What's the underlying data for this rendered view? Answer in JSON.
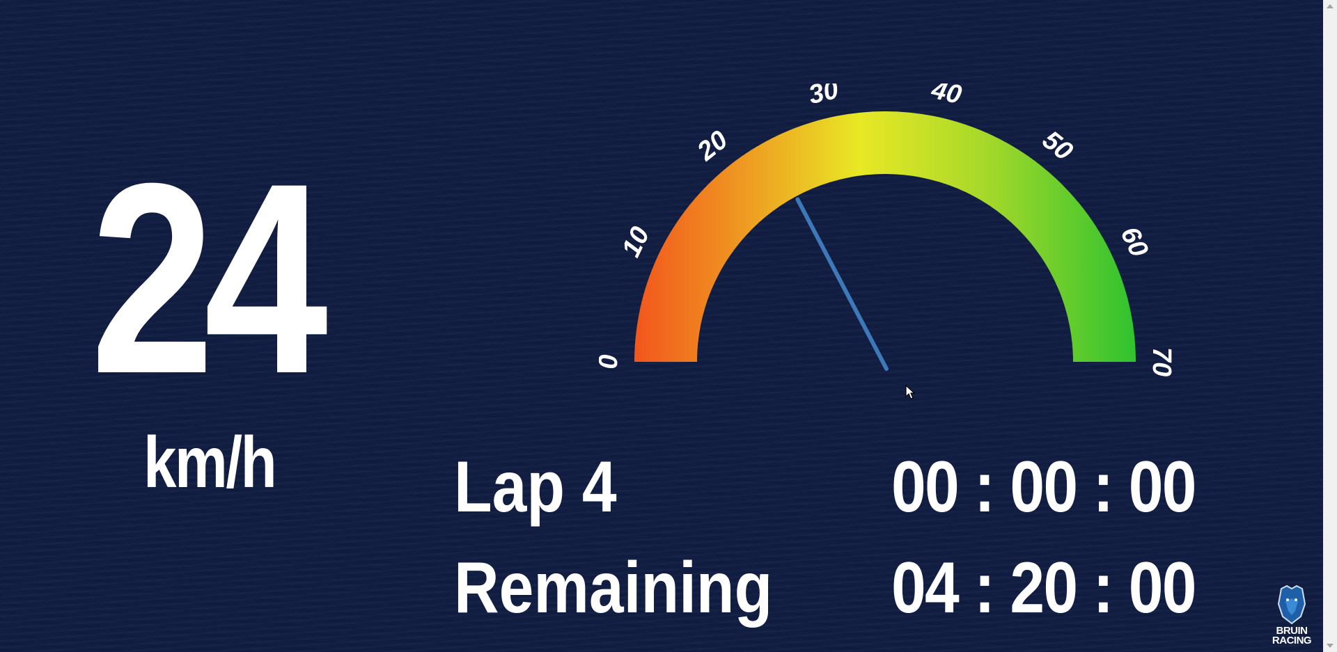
{
  "speed": {
    "value": "24",
    "unit": "km/h"
  },
  "gauge": {
    "min": 0,
    "max": 70,
    "value": 24,
    "tick_labels": [
      "0",
      "10",
      "20",
      "30",
      "40",
      "50",
      "60",
      "70"
    ],
    "colors": {
      "low": "#f2561c",
      "mid": "#e8e825",
      "high": "#2fc22f",
      "needle": "#3d78b8"
    }
  },
  "lap": {
    "label": "Lap 4",
    "time": "00 : 00 : 00"
  },
  "remaining": {
    "label": "Remaining",
    "time": "04 : 20 : 00"
  },
  "brand": {
    "line1": "BRUIN",
    "line2": "RACING",
    "icon": "bear-logo-icon"
  },
  "colors": {
    "background": "#111e42",
    "text": "#ffffff"
  }
}
